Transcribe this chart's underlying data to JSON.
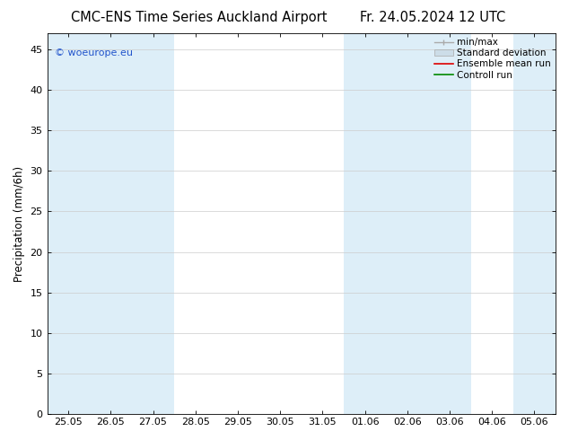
{
  "title_left": "CMC-ENS Time Series Auckland Airport",
  "title_right": "Fr. 24.05.2024 12 UTC",
  "ylabel": "Precipitation (mm/6h)",
  "ylim": [
    0,
    47
  ],
  "yticks": [
    0,
    5,
    10,
    15,
    20,
    25,
    30,
    35,
    40,
    45
  ],
  "x_labels": [
    "25.05",
    "26.05",
    "27.05",
    "28.05",
    "29.05",
    "30.05",
    "31.05",
    "01.06",
    "02.06",
    "03.06",
    "04.06",
    "05.06"
  ],
  "x_values": [
    0,
    1,
    2,
    3,
    4,
    5,
    6,
    7,
    8,
    9,
    10,
    11
  ],
  "shaded_bands": [
    {
      "xmin": -0.5,
      "xmax": 2.5,
      "color": "#ddeef8"
    },
    {
      "xmin": 6.5,
      "xmax": 9.5,
      "color": "#ddeef8"
    },
    {
      "xmin": 10.5,
      "xmax": 12.0,
      "color": "#ddeef8"
    }
  ],
  "watermark": "© woeurope.eu",
  "legend_items": [
    {
      "label": "min/max"
    },
    {
      "label": "Standard deviation"
    },
    {
      "label": "Ensemble mean run"
    },
    {
      "label": "Controll run"
    }
  ],
  "bg_color": "#ffffff",
  "plot_bg_color": "#ffffff",
  "grid_color": "#cccccc",
  "title_fontsize": 10.5,
  "ylabel_fontsize": 8.5,
  "tick_fontsize": 8,
  "legend_fontsize": 7.5,
  "band_color": "#ddeef8",
  "legend_line_gray": "#aaaaaa",
  "legend_fill_blue": "#ccdde8",
  "legend_red": "#dd0000",
  "legend_green": "#008800"
}
